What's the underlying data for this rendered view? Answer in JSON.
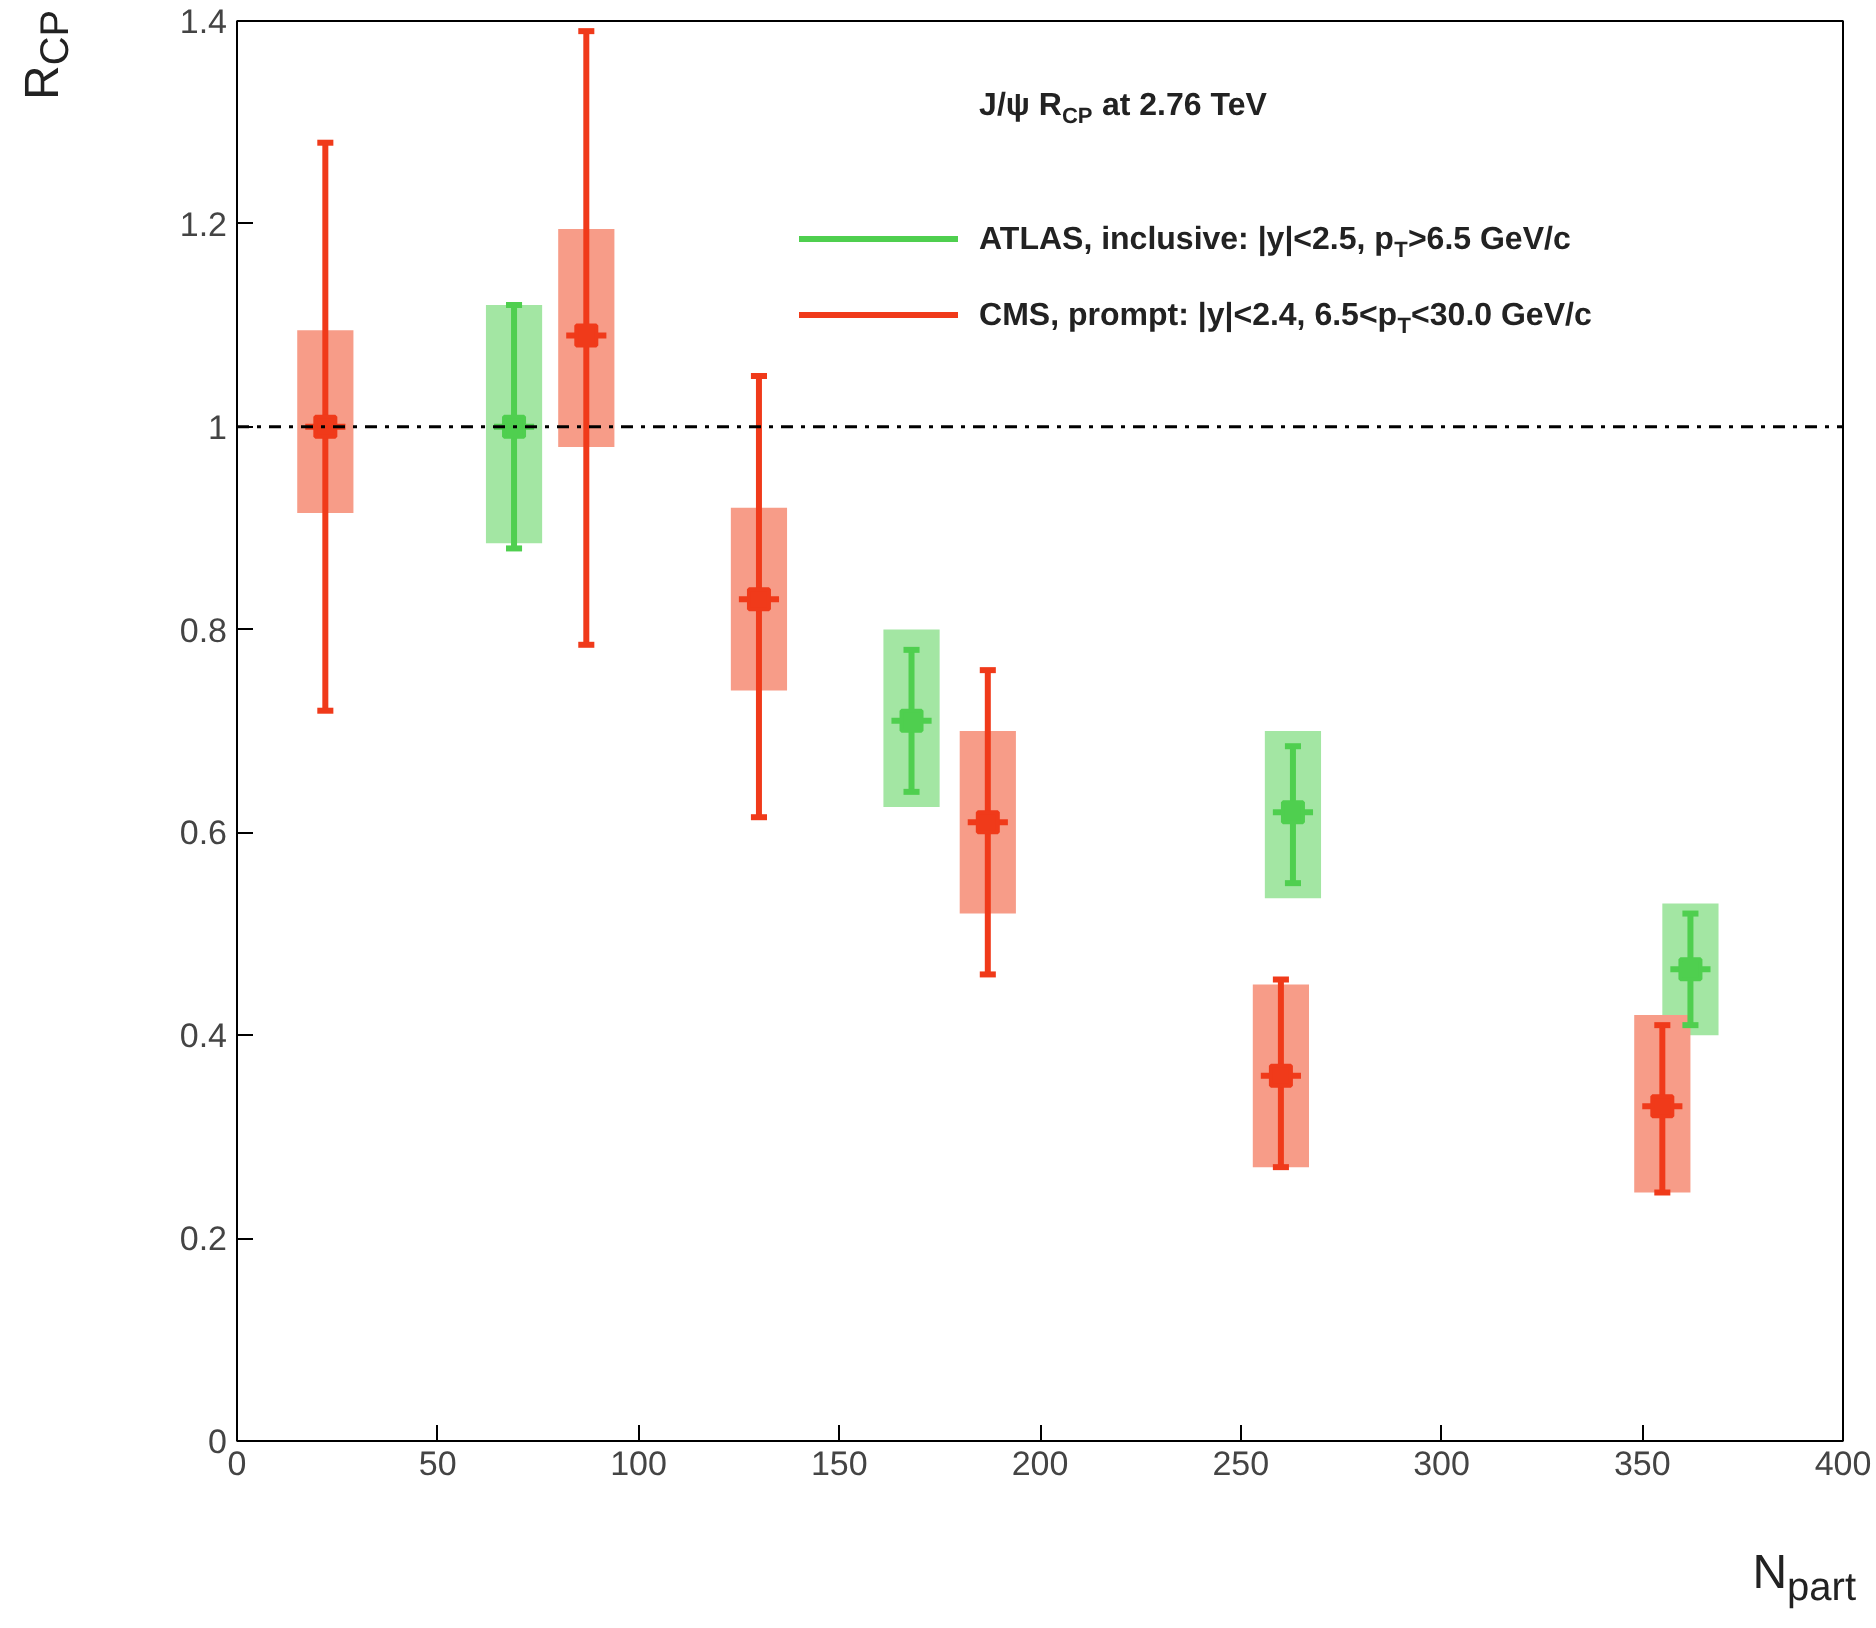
{
  "chart_data": {
    "type": "scatter",
    "xlabel": "N$_{part}$",
    "ylabel": "R$_{CP}$",
    "legend_title": "J/ψ R$_{CP}$ at 2.76 TeV",
    "xlim": [
      0,
      400
    ],
    "ylim": [
      0,
      1.4
    ],
    "xticks": [
      0,
      50,
      100,
      150,
      200,
      250,
      300,
      350,
      400
    ],
    "yticks": [
      0,
      0.2,
      0.4,
      0.6,
      0.8,
      1,
      1.2,
      1.4
    ],
    "grid": false,
    "legend": "top right",
    "marker": "square",
    "ref_lines": [
      {
        "axis": "y",
        "value": 1,
        "line_style": "dashdot",
        "color": "#000000"
      }
    ],
    "series": [
      {
        "type": "bar",
        "color": "#a3e6a3",
        "x": [
          69,
          168,
          263,
          362
        ],
        "base": [
          0.885,
          0.625,
          0.535,
          0.4
        ],
        "values": [
          0.235,
          0.175,
          0.165,
          0.13
        ]
      },
      {
        "type": "bar",
        "color": "#f79c88",
        "x": [
          22,
          87,
          130,
          187,
          260,
          355
        ],
        "base": [
          0.915,
          0.98,
          0.74,
          0.52,
          0.27,
          0.245
        ],
        "values": [
          0.18,
          0.215,
          0.18,
          0.18,
          0.18,
          0.175
        ]
      },
      {
        "name": "ATLAS, inclusive: |y|<2.5, p$_{T}$>6.5 GeV/c",
        "color": "#4fcf4f",
        "x": [
          69,
          168,
          263,
          362
        ],
        "values": [
          1.0,
          0.71,
          0.62,
          0.465
        ],
        "errors": [
          [
            0.88,
            1.12
          ],
          [
            0.64,
            0.78
          ],
          [
            0.55,
            0.685
          ],
          [
            0.41,
            0.52
          ]
        ],
        "xerrors": [
          5,
          5,
          5,
          5
        ]
      },
      {
        "name": "CMS, prompt: |y|<2.4, 6.5<p$_{T}$<30.0 GeV/c",
        "color": "#f03a1a",
        "x": [
          22,
          87,
          130,
          187,
          260,
          355
        ],
        "values": [
          1.0,
          1.09,
          0.83,
          0.61,
          0.36,
          0.33
        ],
        "errors": [
          [
            0.72,
            1.28
          ],
          [
            0.785,
            1.39
          ],
          [
            0.615,
            1.05
          ],
          [
            0.46,
            0.76
          ],
          [
            0.27,
            0.455
          ],
          [
            0.245,
            0.41
          ]
        ],
        "xerrors": [
          5,
          5,
          5,
          5,
          5,
          5
        ]
      }
    ]
  }
}
